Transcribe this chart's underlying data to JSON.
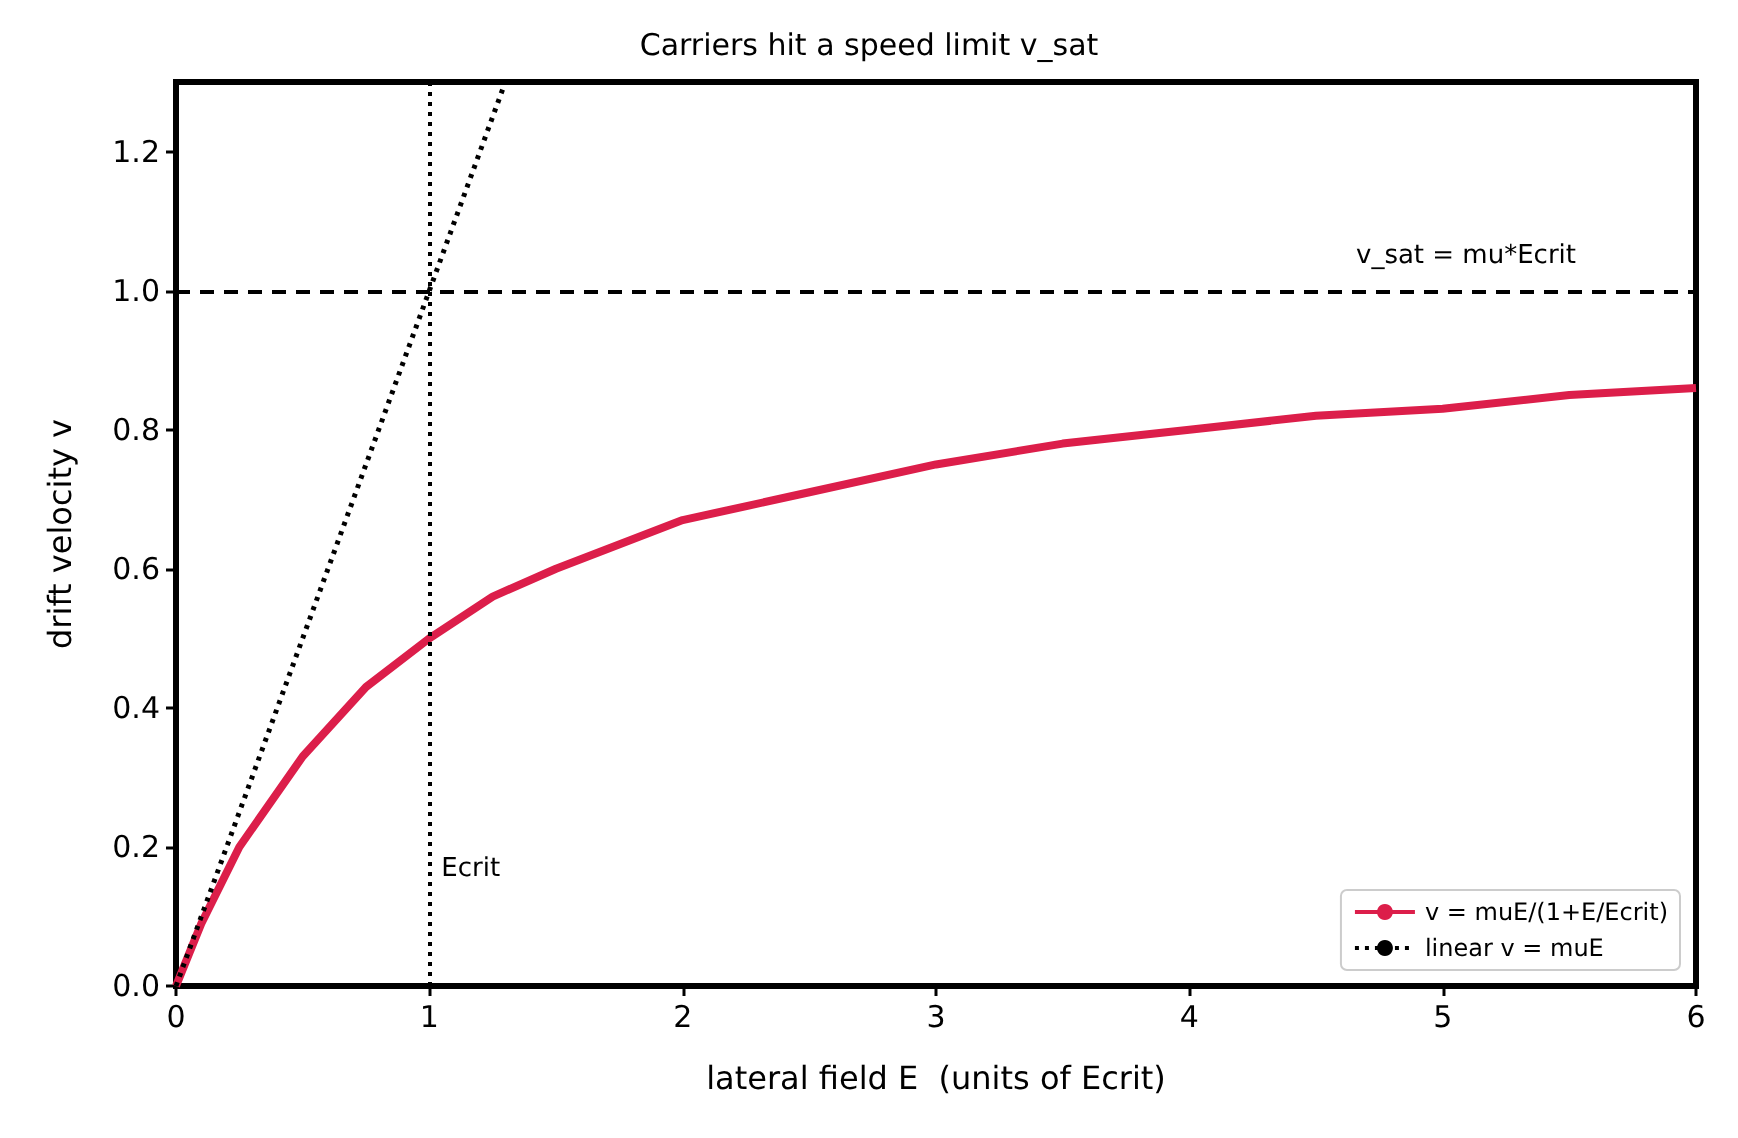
{
  "chart_data": {
    "type": "line",
    "title": "Carriers hit a speed limit v_sat",
    "xlabel": "lateral field E  (units of Ecrit)",
    "ylabel": "drift velocity v",
    "series": [
      {
        "name": "v = muE/(1+E/Ecrit)",
        "color": "#dc1e4a",
        "line_style": "solid",
        "x": [
          0,
          0.1,
          0.25,
          0.5,
          0.75,
          1,
          1.25,
          1.5,
          2,
          2.5,
          3,
          3.5,
          4,
          4.5,
          5,
          5.5,
          6
        ],
        "values": [
          0,
          0.09,
          0.2,
          0.33,
          0.43,
          0.5,
          0.56,
          0.6,
          0.67,
          0.71,
          0.75,
          0.78,
          0.8,
          0.82,
          0.83,
          0.85,
          0.86
        ]
      },
      {
        "name": "linear v = muE",
        "color": "#000000",
        "line_style": "dotted",
        "x": [
          0,
          1.3
        ],
        "values": [
          0,
          1.3
        ]
      }
    ],
    "xlim": [
      0,
      6
    ],
    "ylim": [
      0,
      1.3
    ],
    "xticks": [
      0,
      1,
      2,
      3,
      4,
      5,
      6
    ],
    "yticks": [
      {
        "value": 0,
        "label": "0.0"
      },
      {
        "value": 0.2,
        "label": "0.2"
      },
      {
        "value": 0.4,
        "label": "0.4"
      },
      {
        "value": 0.6,
        "label": "0.6"
      },
      {
        "value": 0.8,
        "label": "0.8"
      },
      {
        "value": 1,
        "label": "1.0"
      },
      {
        "value": 1.2,
        "label": "1.2"
      }
    ],
    "ref_lines": [
      {
        "axis": "y",
        "value": 1,
        "label": "v_sat = mu*Ecrit",
        "color": "#000000",
        "line_style": "dashed"
      },
      {
        "axis": "x",
        "value": 1,
        "label": "Ecrit",
        "color": "#000000",
        "line_style": "dotted"
      }
    ],
    "grid": false,
    "legend": "bottom right",
    "marker": "none"
  }
}
